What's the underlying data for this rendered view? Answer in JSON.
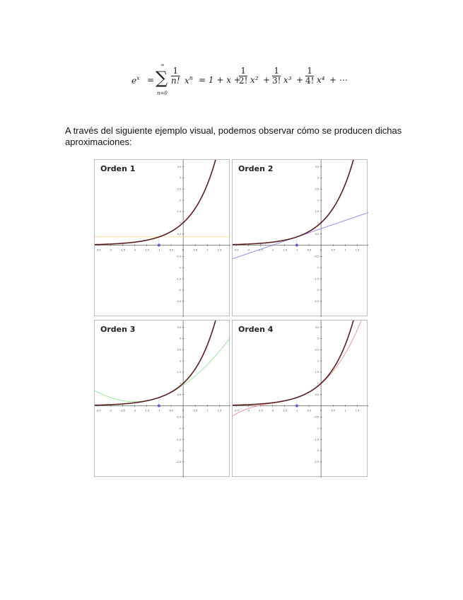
{
  "formula": {
    "lhs": "e",
    "lhs_exp": "x",
    "equals": "=",
    "sum_top": "∞",
    "sum_symbol": "∑",
    "sum_bottom": "n=0",
    "term_num": "1",
    "term_den": "n!",
    "term_var": "x",
    "term_exp": "n",
    "rhs_start": "= 1 + x +",
    "t2_num": "1",
    "t2_den": "2!",
    "t2_var": "x²",
    "plus2": "+",
    "t3_num": "1",
    "t3_den": "3!",
    "t3_var": "x³",
    "plus3": "+",
    "t4_num": "1",
    "t4_den": "4!",
    "t4_var": "x⁴",
    "tail": "+ ⋯"
  },
  "intro_text": "A través del siguiente ejemplo visual, podemos observar cómo se producen dichas aproximaciones:",
  "chart_data": [
    {
      "type": "line",
      "title": "Orden 1",
      "approx_terms": 1,
      "center": -1,
      "xlim": [
        -3.65,
        1.95
      ],
      "ylim": [
        -3.2,
        3.8
      ],
      "x_ticks": [
        -3.5,
        -3,
        -2.5,
        -2,
        -1.5,
        -1,
        -0.5,
        0,
        0.5,
        1,
        1.5
      ],
      "y_ticks": [
        -2.5,
        -2,
        -1.5,
        -1,
        -0.5,
        0.5,
        1,
        1.5,
        2,
        2.5,
        3,
        3.5
      ],
      "series": [
        {
          "function": "e^x",
          "color": "#5b1d1d"
        },
        {
          "function": "e^-1",
          "color": "#f5e3a8"
        }
      ],
      "point": {
        "x": -1,
        "y": 0
      }
    },
    {
      "type": "line",
      "title": "Orden 2",
      "approx_terms": 2,
      "center": -1,
      "xlim": [
        -3.65,
        1.95
      ],
      "ylim": [
        -3.2,
        3.8
      ],
      "x_ticks": [
        -3.5,
        -3,
        -2.5,
        -2,
        -1.5,
        -1,
        -0.5,
        0,
        0.5,
        1,
        1.5
      ],
      "y_ticks": [
        -2.5,
        -2,
        -1.5,
        -1,
        -0.5,
        0.5,
        1,
        1.5,
        2,
        2.5,
        3,
        3.5
      ],
      "series": [
        {
          "function": "e^x",
          "color": "#5b1d1d"
        },
        {
          "function": "e^-1(1+(x+1))",
          "color": "#8f8ff5"
        }
      ],
      "point": {
        "x": -1,
        "y": 0
      }
    },
    {
      "type": "line",
      "title": "Orden 3",
      "approx_terms": 3,
      "center": -1,
      "xlim": [
        -3.65,
        1.95
      ],
      "ylim": [
        -3.2,
        3.8
      ],
      "x_ticks": [
        -3.5,
        -3,
        -2.5,
        -2,
        -1.5,
        -1,
        -0.5,
        0,
        0.5,
        1,
        1.5
      ],
      "y_ticks": [
        -2.5,
        -2,
        -1.5,
        -1,
        -0.5,
        0.5,
        1,
        1.5,
        2,
        2.5,
        3,
        3.5
      ],
      "series": [
        {
          "function": "e^x",
          "color": "#5b1d1d"
        },
        {
          "function": "e^-1(1+(x+1)+(x+1)^2/2)",
          "color": "#9be89b"
        }
      ],
      "point": {
        "x": -1,
        "y": 0
      }
    },
    {
      "type": "line",
      "title": "Orden 4",
      "approx_terms": 4,
      "center": -1,
      "xlim": [
        -3.65,
        1.95
      ],
      "ylim": [
        -3.2,
        3.8
      ],
      "x_ticks": [
        -3.5,
        -3,
        -2.5,
        -2,
        -1.5,
        -1,
        -0.5,
        0,
        0.5,
        1,
        1.5
      ],
      "y_ticks": [
        -2.5,
        -2,
        -1.5,
        -1,
        -0.5,
        0.5,
        1,
        1.5,
        2,
        2.5,
        3,
        3.5
      ],
      "series": [
        {
          "function": "e^x",
          "color": "#5b1d1d"
        },
        {
          "function": "e^-1(1+(x+1)+(x+1)^2/2+(x+1)^3/6)",
          "color": "#f29a9a"
        }
      ],
      "point": {
        "x": -1,
        "y": 0
      }
    }
  ]
}
